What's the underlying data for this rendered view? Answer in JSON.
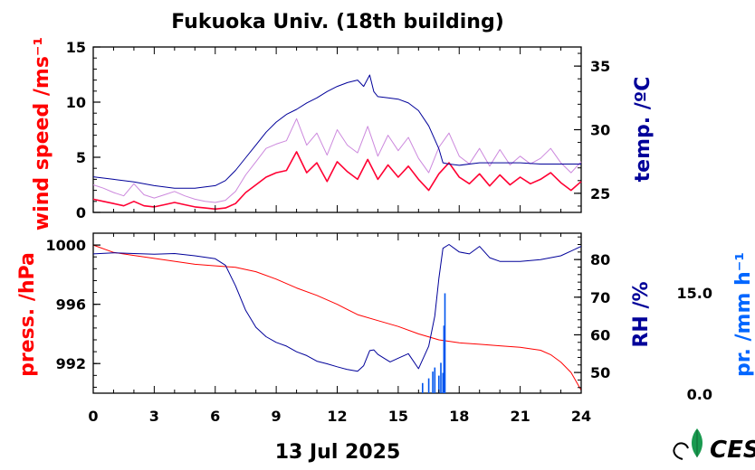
{
  "page": {
    "title": "Fukuoka Univ. (18th building)",
    "date_label": "13 Jul 2025"
  },
  "chart_data": [
    {
      "type": "line",
      "panel": "upper",
      "left_axis": {
        "label": "wind speed /ms⁻¹",
        "color": "#ff0000",
        "ylim": [
          0,
          15
        ],
        "ticks": [
          0,
          5,
          10,
          15
        ],
        "tick_labels": [
          "0",
          "5",
          "10",
          "15"
        ]
      },
      "right_axis": {
        "label": "temp. /ºC",
        "color": "#000099",
        "ylim": [
          23.5,
          36.5
        ],
        "ticks": [
          25,
          30,
          35
        ],
        "tick_labels": [
          "25",
          "30",
          "35"
        ]
      },
      "xlim": [
        0,
        24
      ],
      "series": [
        {
          "axis": "left",
          "color": "#ff0033",
          "note": "wind speed (smoothed)",
          "x": [
            0,
            0.5,
            1,
            1.5,
            2,
            2.5,
            3,
            3.5,
            4,
            4.5,
            5,
            5.5,
            6,
            6.5,
            7,
            7.5,
            8,
            8.5,
            9,
            9.5,
            10,
            10.5,
            11,
            11.5,
            12,
            12.5,
            13,
            13.5,
            14,
            14.5,
            15,
            15.5,
            16,
            16.5,
            17,
            17.5,
            18,
            18.5,
            19,
            19.5,
            20,
            20.5,
            21,
            21.5,
            22,
            22.5,
            23,
            23.5,
            24
          ],
          "y": [
            1.2,
            1.0,
            0.8,
            0.6,
            1.0,
            0.6,
            0.5,
            0.7,
            0.9,
            0.7,
            0.5,
            0.4,
            0.3,
            0.4,
            0.8,
            1.8,
            2.5,
            3.2,
            3.6,
            3.8,
            5.5,
            3.6,
            4.5,
            2.8,
            4.6,
            3.7,
            3.0,
            4.8,
            3.0,
            4.3,
            3.2,
            4.2,
            3.0,
            2.0,
            3.5,
            4.5,
            3.2,
            2.6,
            3.5,
            2.4,
            3.4,
            2.5,
            3.2,
            2.6,
            3.0,
            3.6,
            2.7,
            2.0,
            2.8
          ]
        },
        {
          "axis": "left",
          "color": "#cc88dd",
          "note": "wind speed (raw gust envelope)",
          "x": [
            0,
            0.5,
            1,
            1.5,
            2,
            2.5,
            3,
            3.5,
            4,
            4.5,
            5,
            5.5,
            6,
            6.5,
            7,
            7.5,
            8,
            8.5,
            9,
            9.5,
            10,
            10.5,
            11,
            11.5,
            12,
            12.5,
            13,
            13.5,
            14,
            14.5,
            15,
            15.5,
            16,
            16.5,
            17,
            17.5,
            18,
            18.5,
            19,
            19.5,
            20,
            20.5,
            21,
            21.5,
            22,
            22.5,
            23,
            23.5,
            24
          ],
          "y": [
            2.5,
            2.2,
            1.8,
            1.5,
            2.6,
            1.6,
            1.3,
            1.6,
            1.9,
            1.5,
            1.2,
            1.0,
            0.9,
            1.1,
            1.9,
            3.4,
            4.6,
            5.8,
            6.2,
            6.5,
            8.5,
            6.1,
            7.2,
            5.2,
            7.5,
            6.1,
            5.4,
            7.8,
            5.1,
            7.0,
            5.6,
            6.8,
            4.9,
            3.6,
            5.9,
            7.2,
            5.1,
            4.4,
            5.8,
            4.2,
            5.7,
            4.3,
            5.1,
            4.4,
            4.9,
            5.8,
            4.5,
            3.6,
            4.6
          ]
        },
        {
          "axis": "right",
          "color": "#000099",
          "note": "temperature",
          "x": [
            0,
            1,
            2,
            3,
            4,
            5,
            6,
            6.5,
            7,
            7.5,
            8,
            8.5,
            9,
            9.5,
            10,
            10.5,
            11,
            11.5,
            12,
            12.5,
            13,
            13.3,
            13.6,
            13.8,
            14,
            14.5,
            15,
            15.5,
            16,
            16.5,
            17,
            17.2,
            17.5,
            18,
            19,
            20,
            21,
            22,
            23,
            24
          ],
          "y": [
            26.3,
            26.1,
            25.9,
            25.6,
            25.4,
            25.4,
            25.6,
            26.0,
            26.8,
            27.8,
            28.8,
            29.8,
            30.6,
            31.2,
            31.6,
            32.1,
            32.5,
            33.0,
            33.4,
            33.7,
            33.9,
            33.4,
            34.3,
            33.0,
            32.6,
            32.5,
            32.4,
            32.1,
            31.5,
            30.3,
            28.5,
            27.4,
            27.3,
            27.2,
            27.4,
            27.4,
            27.4,
            27.3,
            27.3,
            27.3
          ]
        }
      ]
    },
    {
      "type": "line",
      "panel": "lower",
      "left_axis": {
        "label": "press. /hPa",
        "color": "#ff0000",
        "ylim": [
          990,
          1000.8
        ],
        "ticks": [
          992,
          996,
          1000
        ],
        "tick_labels": [
          "992",
          "996",
          "1000"
        ]
      },
      "right_axis": {
        "label": "RH /%",
        "color": "#000099",
        "ylim": [
          44.5,
          87
        ],
        "ticks": [
          50,
          60,
          70,
          80
        ],
        "tick_labels": [
          "50",
          "60",
          "70",
          "80"
        ]
      },
      "extra_axis": {
        "label": "pr. /mm h⁻¹",
        "color": "#0066ff",
        "ticks": [
          0,
          15
        ],
        "tick_labels": [
          "0.0",
          "15.0"
        ]
      },
      "xlim": [
        0,
        24
      ],
      "series": [
        {
          "axis": "left",
          "color": "#ff0000",
          "note": "pressure",
          "x": [
            0,
            1,
            2,
            3,
            4,
            5,
            6,
            7,
            8,
            9,
            10,
            11,
            12,
            13,
            14,
            15,
            16,
            17,
            18,
            19,
            20,
            21,
            22,
            22.5,
            23,
            23.5,
            24
          ],
          "y": [
            1000.0,
            999.5,
            999.3,
            999.1,
            998.9,
            998.7,
            998.6,
            998.5,
            998.2,
            997.7,
            997.1,
            996.6,
            996.0,
            995.3,
            994.9,
            994.5,
            994.0,
            993.6,
            993.4,
            993.3,
            993.2,
            993.1,
            992.9,
            992.6,
            992.1,
            991.4,
            990.2
          ]
        },
        {
          "axis": "right",
          "color": "#000099",
          "note": "relative humidity",
          "x": [
            0,
            1,
            2,
            3,
            4,
            5,
            6,
            6.5,
            7,
            7.5,
            8,
            8.5,
            9,
            9.5,
            10,
            10.5,
            11,
            11.5,
            12,
            12.5,
            13,
            13.3,
            13.6,
            13.8,
            14,
            14.3,
            14.6,
            15,
            15.5,
            16,
            16.5,
            16.8,
            17,
            17.2,
            17.5,
            18,
            18.5,
            19,
            19.5,
            20,
            21,
            22,
            23,
            24
          ],
          "y": [
            81.5,
            81.8,
            81.6,
            81.4,
            81.6,
            81.0,
            80.2,
            78.5,
            73.0,
            66.5,
            62.0,
            59.5,
            58.0,
            57.0,
            55.5,
            54.5,
            53.0,
            52.3,
            51.5,
            50.8,
            50.3,
            51.8,
            55.8,
            56.0,
            54.8,
            53.8,
            52.8,
            53.8,
            55.0,
            51.0,
            57.0,
            65.0,
            75.0,
            83.0,
            84.0,
            82.0,
            81.5,
            83.5,
            80.5,
            79.5,
            79.5,
            80.0,
            81.0,
            83.5
          ]
        },
        {
          "axis": "extra",
          "color": "#0055ee",
          "note": "precipitation bars",
          "x": [
            16.2,
            16.5,
            16.7,
            16.8,
            17.0,
            17.1,
            17.2,
            17.25,
            17.3
          ],
          "y": [
            1.5,
            2.2,
            3.2,
            3.8,
            2.6,
            4.5,
            3.0,
            10.0,
            14.8
          ]
        }
      ]
    }
  ],
  "x_axis": {
    "ticks": [
      0,
      3,
      6,
      9,
      12,
      15,
      18,
      21,
      24
    ],
    "tick_labels": [
      "0",
      "3",
      "6",
      "9",
      "12",
      "15",
      "18",
      "21",
      "24"
    ]
  },
  "logo": {
    "icon": "leaf-logo-icon",
    "text": "CES"
  }
}
